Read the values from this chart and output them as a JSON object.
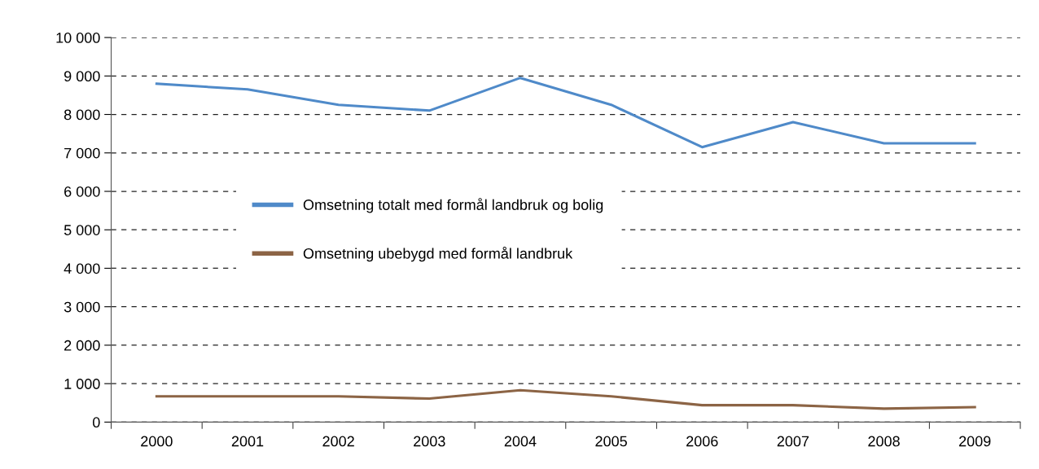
{
  "chart_data": {
    "type": "line",
    "categories": [
      "2000",
      "2001",
      "2002",
      "2003",
      "2004",
      "2005",
      "2006",
      "2007",
      "2008",
      "2009"
    ],
    "series": [
      {
        "name": "Omsetning totalt med formål landbruk og bolig",
        "color": "#4f8ac9",
        "values": [
          8800,
          8650,
          8250,
          8100,
          8950,
          8250,
          7150,
          7800,
          7250,
          7250
        ]
      },
      {
        "name": "Omsetning ubebygd med formål landbruk",
        "color": "#8c6445",
        "values": [
          670,
          670,
          670,
          610,
          830,
          670,
          440,
          440,
          350,
          390
        ]
      }
    ],
    "ylim": [
      0,
      10000
    ],
    "yticks": [
      0,
      {
        "value": 1000,
        "label": "1 000"
      },
      {
        "value": 2000,
        "label": "2 000"
      },
      {
        "value": 3000,
        "label": "3 000"
      },
      {
        "value": 4000,
        "label": "4 000"
      },
      {
        "value": 5000,
        "label": "5 000"
      },
      {
        "value": 6000,
        "label": "6 000"
      },
      {
        "value": 7000,
        "label": "7 000"
      },
      {
        "value": 8000,
        "label": "8 000"
      },
      {
        "value": 9000,
        "label": "9 000"
      },
      {
        "value": 10000,
        "label": "10 000"
      }
    ],
    "grid": "y",
    "legend": "center left",
    "line_style": "solid",
    "marker": "none"
  }
}
